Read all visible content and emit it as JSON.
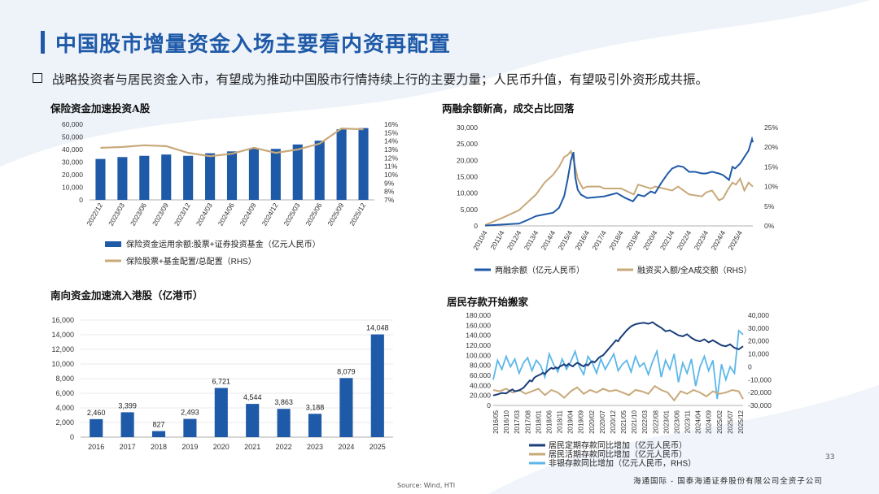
{
  "page": {
    "title": "中国股市增量资金入场主要看内资再配置",
    "subtitle": "战略投资者与居民资金入市，有望成为推动中国股市行情持续上行的主要力量；人民币升值，有望吸引外资形成共振。",
    "source": "Source: Wind, HTI",
    "footer": "海通国际 - 国泰海通证券股份有限公司全资子公司",
    "page_number": "33",
    "accent": "#1f5aa8"
  },
  "chart_data": [
    {
      "id": "insurance",
      "type": "bar",
      "title": "保险资金加速投资A股",
      "categories": [
        "2022/12",
        "2023/03",
        "2023/06",
        "2023/09",
        "2023/12",
        "2024/03",
        "2024/06",
        "2024/09",
        "2024/12",
        "2025/03",
        "2025/06",
        "2025/09",
        "2025/12"
      ],
      "series": [
        {
          "name": "保险资金运用余额:股票+证券投资基金（亿元人民币）",
          "values": [
            32500,
            34000,
            35000,
            36000,
            35000,
            37000,
            38500,
            41000,
            40500,
            44000,
            47000,
            56000,
            57000
          ],
          "color": "#1f5aa8",
          "axis": "left"
        },
        {
          "name": "保险股票+基金配置/总配置（RHS）",
          "values": [
            13.2,
            13.3,
            13.5,
            13.4,
            12.6,
            12.2,
            12.5,
            13.2,
            12.6,
            13.0,
            13.7,
            15.5,
            15.4
          ],
          "color": "#c8a97a",
          "axis": "right",
          "render": "line"
        }
      ],
      "ylim": [
        0,
        60000
      ],
      "yticks": [
        "0",
        "10,000",
        "20,000",
        "30,000",
        "40,000",
        "50,000",
        "60,000"
      ],
      "y2lim": [
        7,
        16
      ],
      "y2ticks": [
        "7%",
        "8%",
        "9%",
        "10%",
        "11%",
        "12%",
        "13%",
        "14%",
        "15%",
        "16%"
      ]
    },
    {
      "id": "margin",
      "type": "line",
      "title": "两融余额新高，成交占比回落",
      "categories": [
        "2010/4",
        "2011/4",
        "2012/4",
        "2013/4",
        "2014/4",
        "2015/4",
        "2016/4",
        "2017/4",
        "2018/4",
        "2019/4",
        "2020/4",
        "2021/4",
        "2022/4",
        "2023/4",
        "2024/4",
        "2025/4"
      ],
      "series": [
        {
          "name": "两融余额（亿元人民币）",
          "color": "#1f5aa8",
          "axis": "left",
          "x": [
            2010.25,
            2011.25,
            2012.25,
            2012.75,
            2013.25,
            2013.75,
            2014.25,
            2014.6,
            2014.9,
            2015.1,
            2015.3,
            2015.45,
            2015.55,
            2015.7,
            2015.9,
            2016.25,
            2017.25,
            2018.0,
            2018.5,
            2018.95,
            2019.25,
            2019.6,
            2020.0,
            2020.25,
            2020.6,
            2021.0,
            2021.25,
            2021.6,
            2021.9,
            2022.25,
            2022.6,
            2023.0,
            2023.25,
            2023.6,
            2024.0,
            2024.25,
            2024.6,
            2024.8,
            2024.95,
            2025.25,
            2025.5,
            2025.75,
            2025.95,
            2026.0
          ],
          "y": [
            100,
            400,
            700,
            1800,
            3000,
            3500,
            4000,
            5500,
            9000,
            14000,
            20000,
            22500,
            15000,
            11000,
            9500,
            8500,
            9000,
            10000,
            8500,
            7500,
            9500,
            9000,
            10500,
            10000,
            13000,
            16000,
            17500,
            18300,
            18000,
            16500,
            16500,
            16000,
            16000,
            16500,
            16000,
            15500,
            14000,
            18000,
            17500,
            19000,
            21000,
            23000,
            26500,
            25500
          ]
        },
        {
          "name": "融资买入额/全A成交额（RHS）",
          "color": "#c8a97a",
          "axis": "right",
          "x": [
            2010.25,
            2011.25,
            2012.25,
            2013.25,
            2013.75,
            2014.25,
            2014.6,
            2014.9,
            2015.1,
            2015.3,
            2015.5,
            2015.7,
            2016.0,
            2016.25,
            2017.0,
            2017.25,
            2018.25,
            2019.0,
            2019.25,
            2020.0,
            2020.25,
            2021.25,
            2021.6,
            2022.25,
            2023.0,
            2023.25,
            2023.6,
            2024.0,
            2024.25,
            2024.5,
            2024.8,
            2025.0,
            2025.25,
            2025.5,
            2025.75,
            2026.0
          ],
          "y": [
            0.2,
            2.0,
            4.0,
            8.0,
            11.0,
            13.0,
            15.0,
            17.5,
            18.0,
            19.0,
            16.0,
            12.0,
            9.5,
            10.0,
            10.0,
            9.5,
            9.5,
            8.0,
            10.5,
            9.5,
            10.0,
            9.0,
            10.0,
            8.0,
            7.5,
            8.5,
            9.0,
            6.5,
            7.0,
            9.0,
            11.0,
            10.5,
            12.0,
            9.0,
            11.0,
            10.0
          ]
        }
      ],
      "ylim": [
        0,
        30000
      ],
      "yticks": [
        "0",
        "5,000",
        "10,000",
        "15,000",
        "20,000",
        "25,000",
        "30,000"
      ],
      "y2lim": [
        0,
        25
      ],
      "y2ticks": [
        "0%",
        "5%",
        "10%",
        "15%",
        "20%",
        "25%"
      ]
    },
    {
      "id": "southbound",
      "type": "bar",
      "title": "南向资金加速流入港股（亿港币）",
      "categories": [
        "2016",
        "2017",
        "2018",
        "2019",
        "2020",
        "2021",
        "2022",
        "2023",
        "2024",
        "2025"
      ],
      "values": [
        2460,
        3399,
        827,
        2493,
        6721,
        4544,
        3863,
        3188,
        8079,
        14048
      ],
      "labels": [
        "2,460",
        "3,399",
        "827",
        "2,493",
        "6,721",
        "4,544",
        "3,863",
        "3,188",
        "8,079",
        "14,048"
      ],
      "ylim": [
        0,
        16000
      ],
      "yticks": [
        "0",
        "2,000",
        "4,000",
        "6,000",
        "8,000",
        "10,000",
        "12,000",
        "14,000",
        "16,000"
      ],
      "color": "#1f5aa8"
    },
    {
      "id": "deposits",
      "type": "line",
      "title": "居民存款开始搬家",
      "categories": [
        "2016/05",
        "2016/10",
        "2017/03",
        "2017/08",
        "2018/01",
        "2018/06",
        "2018/11",
        "2019/04",
        "2019/09",
        "2020/02",
        "2020/07",
        "2020/12",
        "2021/05",
        "2021/10",
        "2022/03",
        "2022/08",
        "2023/01",
        "2023/06",
        "2023/11",
        "2024/04",
        "2024/09",
        "2025/02",
        "2025/07",
        "2025/12"
      ],
      "series": [
        {
          "name": "居民定期存款同比增加（亿元人民币）",
          "color": "#1a3e7a",
          "axis": "left",
          "x": [
            0,
            2,
            4,
            6,
            8,
            9,
            10,
            12,
            14,
            15,
            16,
            17,
            18,
            19,
            20,
            21,
            22,
            23,
            24,
            25,
            26,
            27,
            28,
            29,
            30,
            31,
            32,
            33,
            34,
            35,
            36,
            37,
            38,
            39,
            40,
            41,
            42,
            43,
            44,
            45,
            46,
            47,
            48,
            49,
            50,
            51,
            52,
            53,
            54,
            55,
            56,
            57,
            58,
            59,
            60,
            62,
            64,
            66,
            68,
            70,
            72,
            74,
            76,
            78,
            80,
            82,
            84,
            86,
            88,
            90,
            92,
            94,
            96,
            98,
            100,
            102,
            104,
            106,
            108,
            110,
            112,
            114,
            116
          ],
          "y": [
            20000,
            22000,
            25000,
            24000,
            30000,
            32000,
            28000,
            30000,
            35000,
            40000,
            45000,
            50000,
            48000,
            55000,
            58000,
            60000,
            62000,
            65000,
            63000,
            68000,
            72000,
            75000,
            73000,
            76000,
            74000,
            78000,
            80000,
            82000,
            79000,
            83000,
            80000,
            78000,
            82000,
            85000,
            83000,
            80000,
            78000,
            82000,
            80000,
            85000,
            88000,
            86000,
            90000,
            95000,
            98000,
            100000,
            105000,
            110000,
            115000,
            120000,
            125000,
            130000,
            128000,
            135000,
            140000,
            150000,
            158000,
            162000,
            164000,
            165000,
            163000,
            166000,
            160000,
            155000,
            148000,
            150000,
            145000,
            140000,
            138000,
            142000,
            135000,
            130000,
            128000,
            132000,
            126000,
            130000,
            125000,
            120000,
            118000,
            122000,
            115000,
            112000,
            118000
          ]
        },
        {
          "name": "居民活期存款同比增加（亿元人民币）",
          "color": "#c8a97a",
          "axis": "right",
          "x": [
            0,
            3,
            6,
            9,
            12,
            15,
            18,
            21,
            24,
            27,
            30,
            33,
            36,
            39,
            42,
            45,
            48,
            51,
            54,
            57,
            60,
            63,
            66,
            69,
            72,
            75,
            78,
            81,
            84,
            87,
            90,
            93,
            96,
            99,
            102,
            105,
            108,
            111,
            114,
            116
          ],
          "y": [
            -18000,
            -19000,
            -17000,
            -20000,
            -18000,
            -21000,
            -19000,
            -17000,
            -22000,
            -18000,
            -20000,
            -24000,
            -19000,
            -16000,
            -21000,
            -18000,
            -20000,
            -17000,
            -19000,
            -18000,
            -20000,
            -22000,
            -18000,
            -19000,
            -21000,
            -15000,
            -18000,
            -20000,
            -26000,
            -19000,
            -21000,
            -18000,
            -20000,
            -23000,
            -19000,
            -21000,
            -20000,
            -18000,
            -19000,
            -25000
          ]
        },
        {
          "name": "非银存款同比增加（亿元人民币，RHS）",
          "color": "#5bb7ea",
          "axis": "right",
          "x": [
            0,
            2,
            4,
            6,
            8,
            10,
            12,
            14,
            16,
            18,
            20,
            22,
            24,
            26,
            28,
            30,
            32,
            34,
            36,
            38,
            40,
            42,
            44,
            46,
            48,
            50,
            52,
            54,
            56,
            58,
            60,
            62,
            64,
            66,
            68,
            70,
            72,
            74,
            76,
            78,
            80,
            82,
            84,
            86,
            88,
            90,
            92,
            94,
            96,
            98,
            100,
            102,
            104,
            106,
            108,
            110,
            112,
            114,
            116
          ],
          "y": [
            -10000,
            5000,
            -2000,
            8000,
            0,
            6000,
            -5000,
            3000,
            7000,
            -3000,
            5000,
            1000,
            -8000,
            10000,
            2000,
            -4000,
            6000,
            -2000,
            4000,
            12000,
            0,
            -6000,
            8000,
            3000,
            -5000,
            6000,
            -2000,
            4000,
            10000,
            -3000,
            2000,
            5000,
            -4000,
            8000,
            0,
            3000,
            -6000,
            4000,
            12000,
            -8000,
            5000,
            -2000,
            10000,
            -12000,
            3000,
            -5000,
            6000,
            -15000,
            0,
            8000,
            -3000,
            5000,
            -25000,
            2000,
            -10000,
            0,
            -5000,
            28000,
            25000
          ]
        }
      ],
      "ylim": [
        0,
        180000
      ],
      "yticks": [
        "0",
        "20,000",
        "40,000",
        "60,000",
        "80,000",
        "100,000",
        "120,000",
        "140,000",
        "160,000",
        "180,000"
      ],
      "y2lim": [
        -30000,
        40000
      ],
      "y2ticks": [
        "-30,000",
        "-20,000",
        "-10,000",
        "0",
        "10,000",
        "20,000",
        "30,000",
        "40,000"
      ]
    }
  ]
}
